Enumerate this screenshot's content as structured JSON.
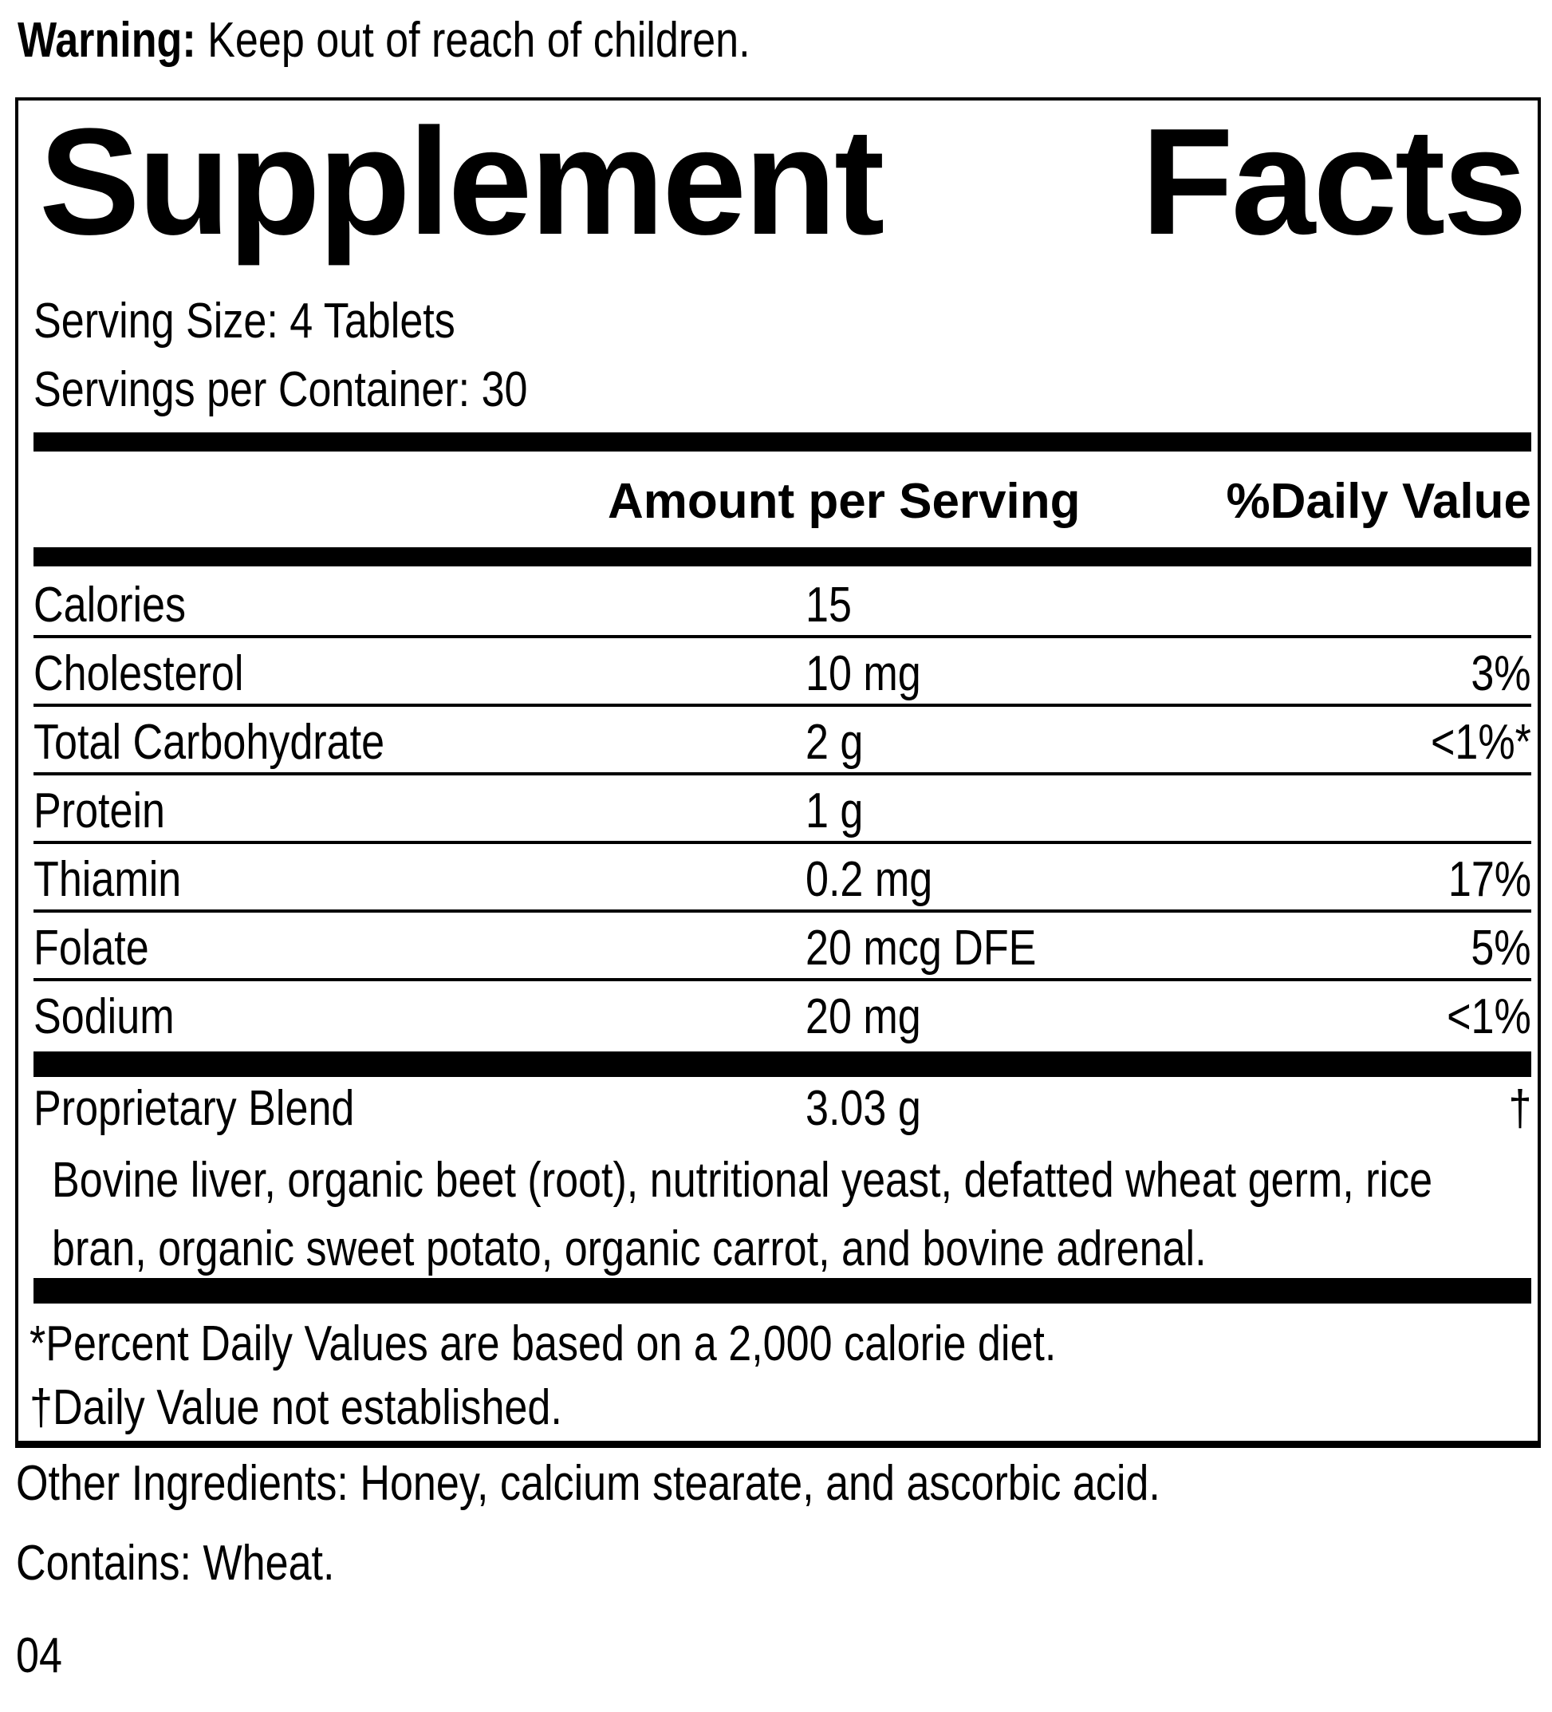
{
  "warning": {
    "label": "Warning:",
    "text": " Keep out of reach of children."
  },
  "panel": {
    "title": {
      "word1": "Supplement",
      "word2": "Facts"
    },
    "serving_size": "Serving Size: 4 Tablets",
    "servings_per_container": "Servings per Container: 30",
    "columns": {
      "amount_header": "Amount per Serving",
      "dv_header": "%Daily Value"
    },
    "rows": [
      {
        "name": "Calories",
        "amount": "15",
        "dv": ""
      },
      {
        "name": "Cholesterol",
        "amount": "10 mg",
        "dv": "3%"
      },
      {
        "name": "Total Carbohydrate",
        "amount": "2 g",
        "dv": "<1%*"
      },
      {
        "name": "Protein",
        "amount": "1 g",
        "dv": ""
      },
      {
        "name": "Thiamin",
        "amount": "0.2 mg",
        "dv": "17%"
      },
      {
        "name": "Folate",
        "amount": "20 mcg DFE",
        "dv": "5%"
      },
      {
        "name": "Sodium",
        "amount": "20 mg",
        "dv": "<1%"
      }
    ],
    "blend": {
      "name": "Proprietary Blend",
      "amount": "3.03 g",
      "dv": "†",
      "description_line1": "Bovine liver, organic beet (root), nutritional yeast, defatted wheat germ, rice",
      "description_line2": "bran, organic sweet potato, organic carrot, and bovine adrenal."
    },
    "footnotes": [
      "*Percent Daily Values are based on a 2,000 calorie diet.",
      "†Daily Value not established."
    ]
  },
  "other_ingredients": "Other Ingredients: Honey, calcium stearate, and ascorbic acid.",
  "contains": "Contains: Wheat.",
  "page_code": "04",
  "colors": {
    "ink": "#000000",
    "paper": "#ffffff"
  }
}
